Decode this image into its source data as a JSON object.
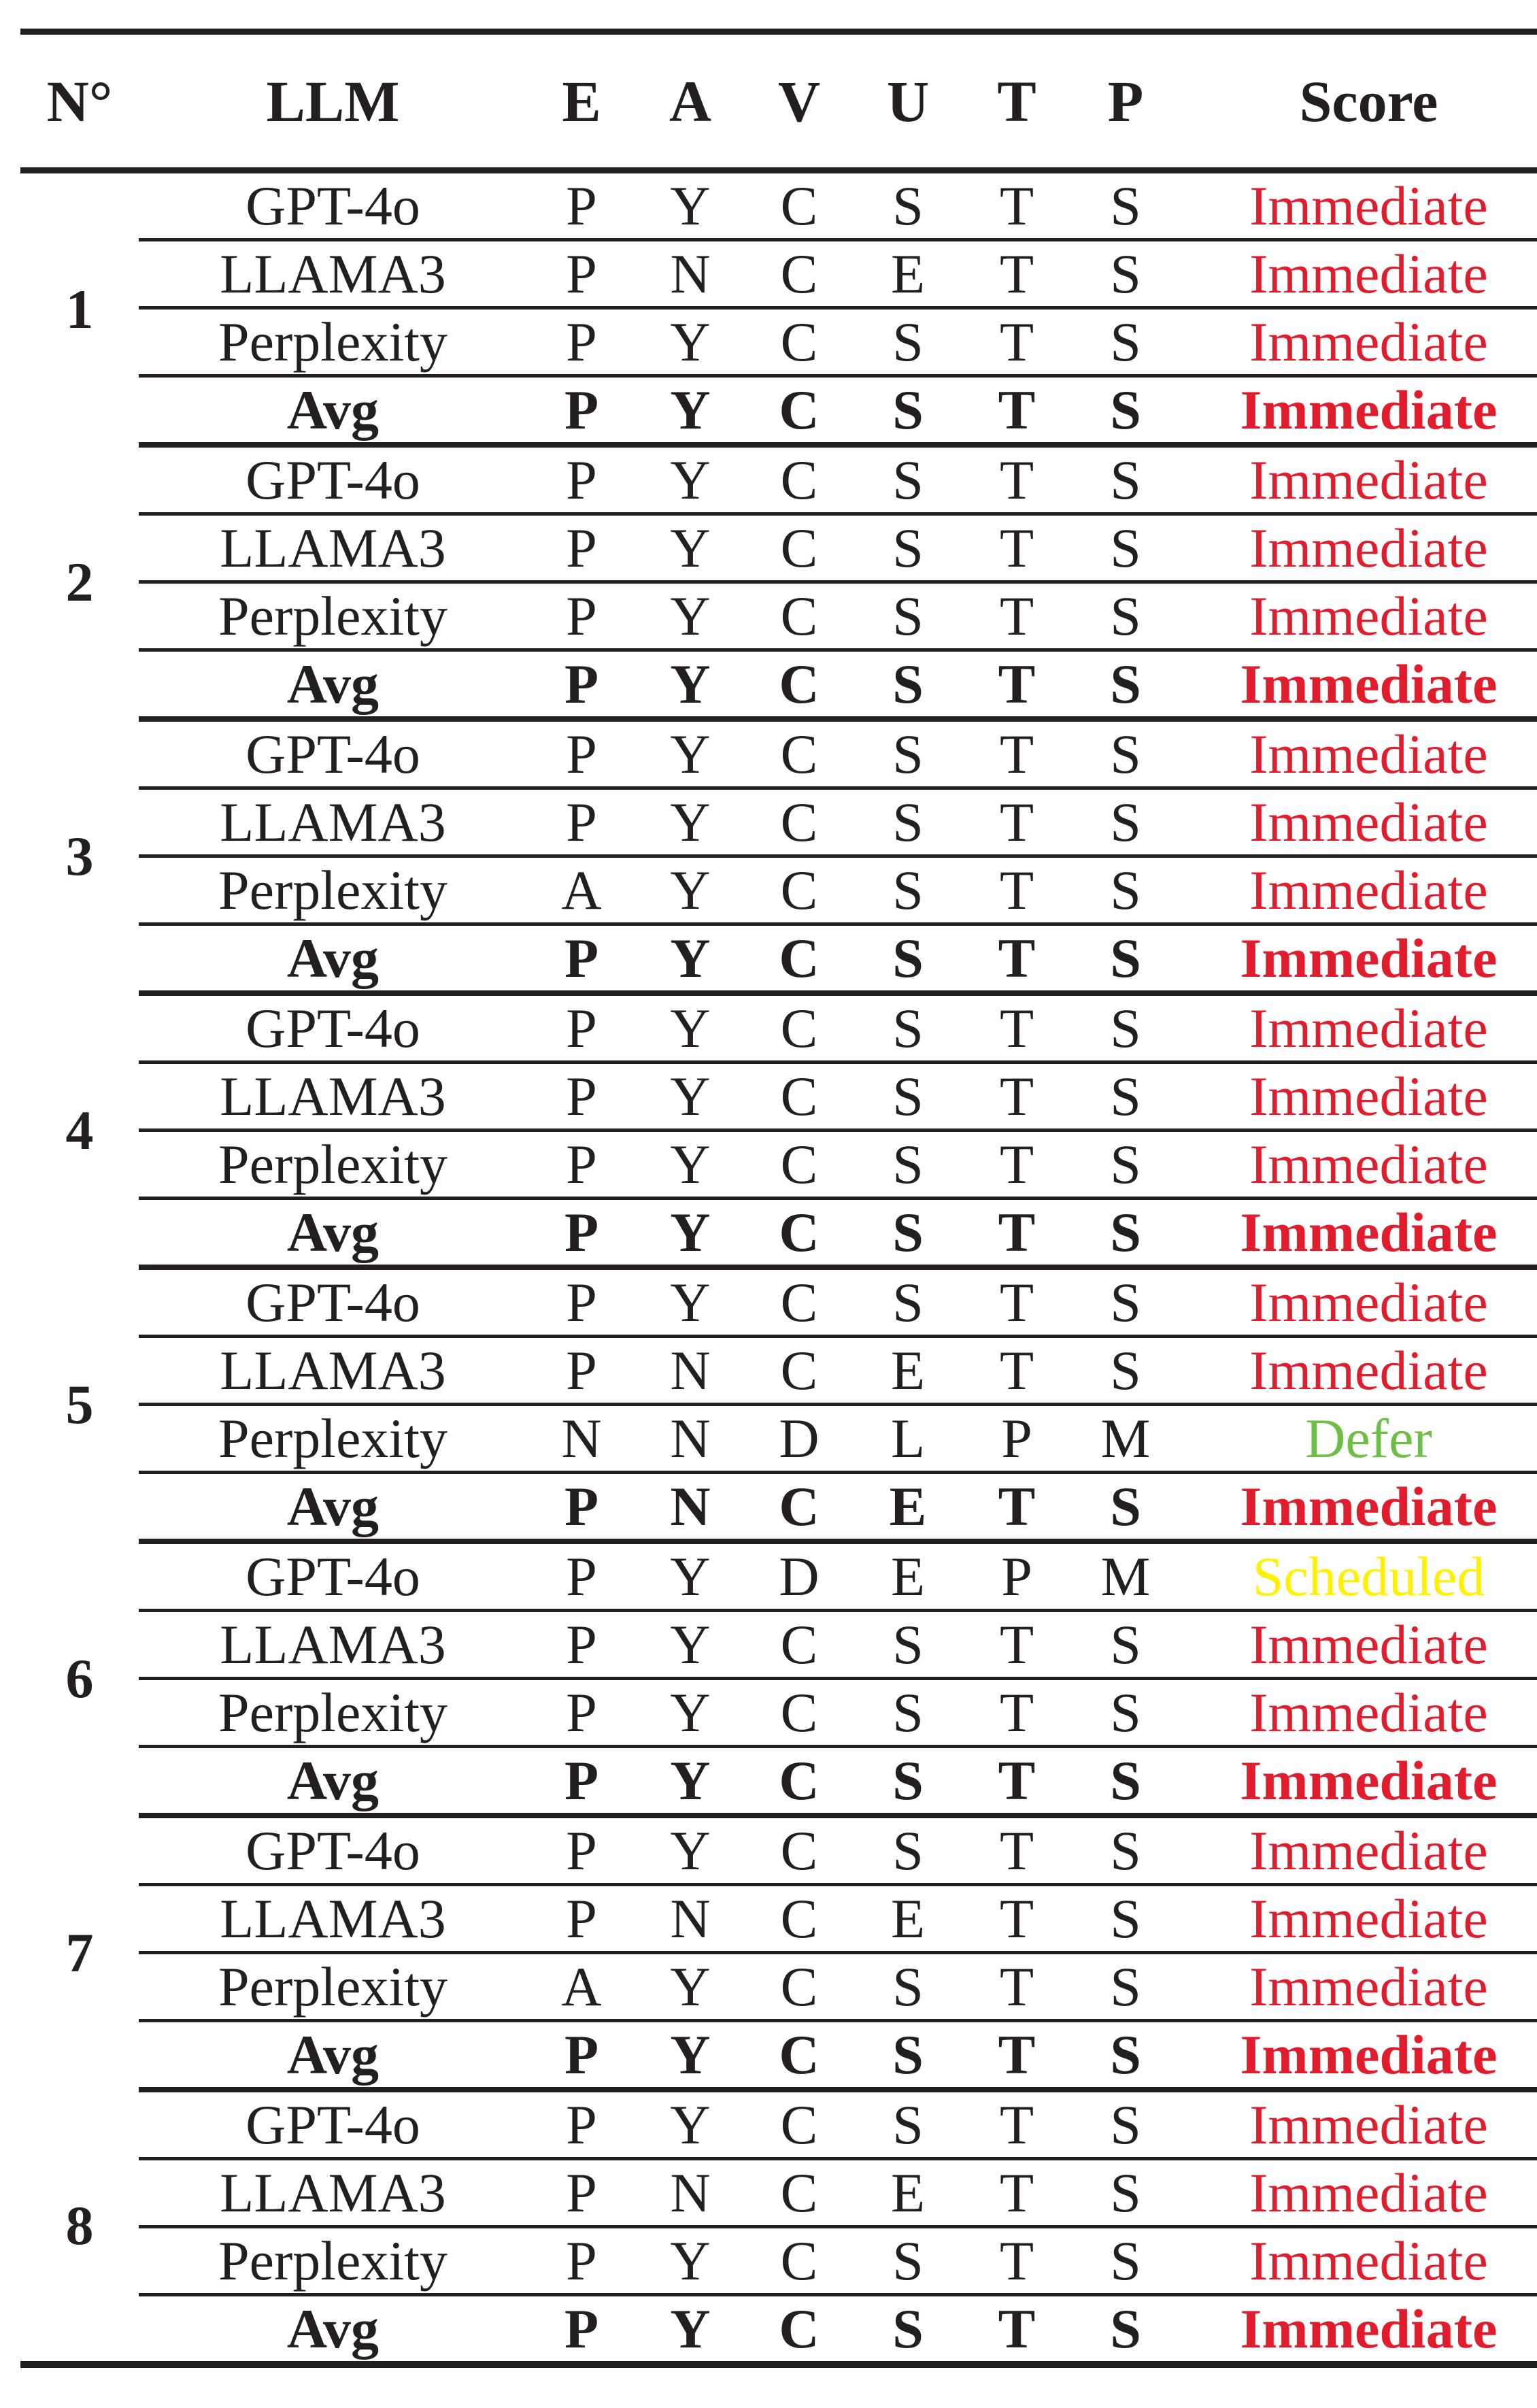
{
  "colors": {
    "ink": "#231f20",
    "red": "#e11c2c",
    "green": "#6cbe45",
    "yellow": "#fff100"
  },
  "table": {
    "headers": [
      "N°",
      "LLM",
      "E",
      "A",
      "V",
      "U",
      "T",
      "P",
      "Score"
    ],
    "groups": [
      {
        "n": "1",
        "rows": [
          {
            "llm": "GPT-4o",
            "vals": [
              "P",
              "Y",
              "C",
              "S",
              "T",
              "S"
            ],
            "score": "Immediate",
            "score_color": "red",
            "bold": false
          },
          {
            "llm": "LLAMA3",
            "vals": [
              "P",
              "N",
              "C",
              "E",
              "T",
              "S"
            ],
            "score": "Immediate",
            "score_color": "red",
            "bold": false
          },
          {
            "llm": "Perplexity",
            "vals": [
              "P",
              "Y",
              "C",
              "S",
              "T",
              "S"
            ],
            "score": "Immediate",
            "score_color": "red",
            "bold": false
          },
          {
            "llm": "Avg",
            "vals": [
              "P",
              "Y",
              "C",
              "S",
              "T",
              "S"
            ],
            "score": "Immediate",
            "score_color": "red",
            "bold": true
          }
        ]
      },
      {
        "n": "2",
        "rows": [
          {
            "llm": "GPT-4o",
            "vals": [
              "P",
              "Y",
              "C",
              "S",
              "T",
              "S"
            ],
            "score": "Immediate",
            "score_color": "red",
            "bold": false
          },
          {
            "llm": "LLAMA3",
            "vals": [
              "P",
              "Y",
              "C",
              "S",
              "T",
              "S"
            ],
            "score": "Immediate",
            "score_color": "red",
            "bold": false
          },
          {
            "llm": "Perplexity",
            "vals": [
              "P",
              "Y",
              "C",
              "S",
              "T",
              "S"
            ],
            "score": "Immediate",
            "score_color": "red",
            "bold": false
          },
          {
            "llm": "Avg",
            "vals": [
              "P",
              "Y",
              "C",
              "S",
              "T",
              "S"
            ],
            "score": "Immediate",
            "score_color": "red",
            "bold": true
          }
        ]
      },
      {
        "n": "3",
        "rows": [
          {
            "llm": "GPT-4o",
            "vals": [
              "P",
              "Y",
              "C",
              "S",
              "T",
              "S"
            ],
            "score": "Immediate",
            "score_color": "red",
            "bold": false
          },
          {
            "llm": "LLAMA3",
            "vals": [
              "P",
              "Y",
              "C",
              "S",
              "T",
              "S"
            ],
            "score": "Immediate",
            "score_color": "red",
            "bold": false
          },
          {
            "llm": "Perplexity",
            "vals": [
              "A",
              "Y",
              "C",
              "S",
              "T",
              "S"
            ],
            "score": "Immediate",
            "score_color": "red",
            "bold": false
          },
          {
            "llm": "Avg",
            "vals": [
              "P",
              "Y",
              "C",
              "S",
              "T",
              "S"
            ],
            "score": "Immediate",
            "score_color": "red",
            "bold": true
          }
        ]
      },
      {
        "n": "4",
        "rows": [
          {
            "llm": "GPT-4o",
            "vals": [
              "P",
              "Y",
              "C",
              "S",
              "T",
              "S"
            ],
            "score": "Immediate",
            "score_color": "red",
            "bold": false
          },
          {
            "llm": "LLAMA3",
            "vals": [
              "P",
              "Y",
              "C",
              "S",
              "T",
              "S"
            ],
            "score": "Immediate",
            "score_color": "red",
            "bold": false
          },
          {
            "llm": "Perplexity",
            "vals": [
              "P",
              "Y",
              "C",
              "S",
              "T",
              "S"
            ],
            "score": "Immediate",
            "score_color": "red",
            "bold": false
          },
          {
            "llm": "Avg",
            "vals": [
              "P",
              "Y",
              "C",
              "S",
              "T",
              "S"
            ],
            "score": "Immediate",
            "score_color": "red",
            "bold": true
          }
        ]
      },
      {
        "n": "5",
        "rows": [
          {
            "llm": "GPT-4o",
            "vals": [
              "P",
              "Y",
              "C",
              "S",
              "T",
              "S"
            ],
            "score": "Immediate",
            "score_color": "red",
            "bold": false
          },
          {
            "llm": "LLAMA3",
            "vals": [
              "P",
              "N",
              "C",
              "E",
              "T",
              "S"
            ],
            "score": "Immediate",
            "score_color": "red",
            "bold": false
          },
          {
            "llm": "Perplexity",
            "vals": [
              "N",
              "N",
              "D",
              "L",
              "P",
              "M"
            ],
            "score": "Defer",
            "score_color": "green",
            "bold": false
          },
          {
            "llm": "Avg",
            "vals": [
              "P",
              "N",
              "C",
              "E",
              "T",
              "S"
            ],
            "score": "Immediate",
            "score_color": "red",
            "bold": true
          }
        ]
      },
      {
        "n": "6",
        "rows": [
          {
            "llm": "GPT-4o",
            "vals": [
              "P",
              "Y",
              "D",
              "E",
              "P",
              "M"
            ],
            "score": "Scheduled",
            "score_color": "yellow",
            "bold": false
          },
          {
            "llm": "LLAMA3",
            "vals": [
              "P",
              "Y",
              "C",
              "S",
              "T",
              "S"
            ],
            "score": "Immediate",
            "score_color": "red",
            "bold": false
          },
          {
            "llm": "Perplexity",
            "vals": [
              "P",
              "Y",
              "C",
              "S",
              "T",
              "S"
            ],
            "score": "Immediate",
            "score_color": "red",
            "bold": false
          },
          {
            "llm": "Avg",
            "vals": [
              "P",
              "Y",
              "C",
              "S",
              "T",
              "S"
            ],
            "score": "Immediate",
            "score_color": "red",
            "bold": true
          }
        ]
      },
      {
        "n": "7",
        "rows": [
          {
            "llm": "GPT-4o",
            "vals": [
              "P",
              "Y",
              "C",
              "S",
              "T",
              "S"
            ],
            "score": "Immediate",
            "score_color": "red",
            "bold": false
          },
          {
            "llm": "LLAMA3",
            "vals": [
              "P",
              "N",
              "C",
              "E",
              "T",
              "S"
            ],
            "score": "Immediate",
            "score_color": "red",
            "bold": false
          },
          {
            "llm": "Perplexity",
            "vals": [
              "A",
              "Y",
              "C",
              "S",
              "T",
              "S"
            ],
            "score": "Immediate",
            "score_color": "red",
            "bold": false
          },
          {
            "llm": "Avg",
            "vals": [
              "P",
              "Y",
              "C",
              "S",
              "T",
              "S"
            ],
            "score": "Immediate",
            "score_color": "red",
            "bold": true
          }
        ]
      },
      {
        "n": "8",
        "rows": [
          {
            "llm": "GPT-4o",
            "vals": [
              "P",
              "Y",
              "C",
              "S",
              "T",
              "S"
            ],
            "score": "Immediate",
            "score_color": "red",
            "bold": false
          },
          {
            "llm": "LLAMA3",
            "vals": [
              "P",
              "N",
              "C",
              "E",
              "T",
              "S"
            ],
            "score": "Immediate",
            "score_color": "red",
            "bold": false
          },
          {
            "llm": "Perplexity",
            "vals": [
              "P",
              "Y",
              "C",
              "S",
              "T",
              "S"
            ],
            "score": "Immediate",
            "score_color": "red",
            "bold": false
          },
          {
            "llm": "Avg",
            "vals": [
              "P",
              "Y",
              "C",
              "S",
              "T",
              "S"
            ],
            "score": "Immediate",
            "score_color": "red",
            "bold": true
          }
        ]
      }
    ]
  }
}
